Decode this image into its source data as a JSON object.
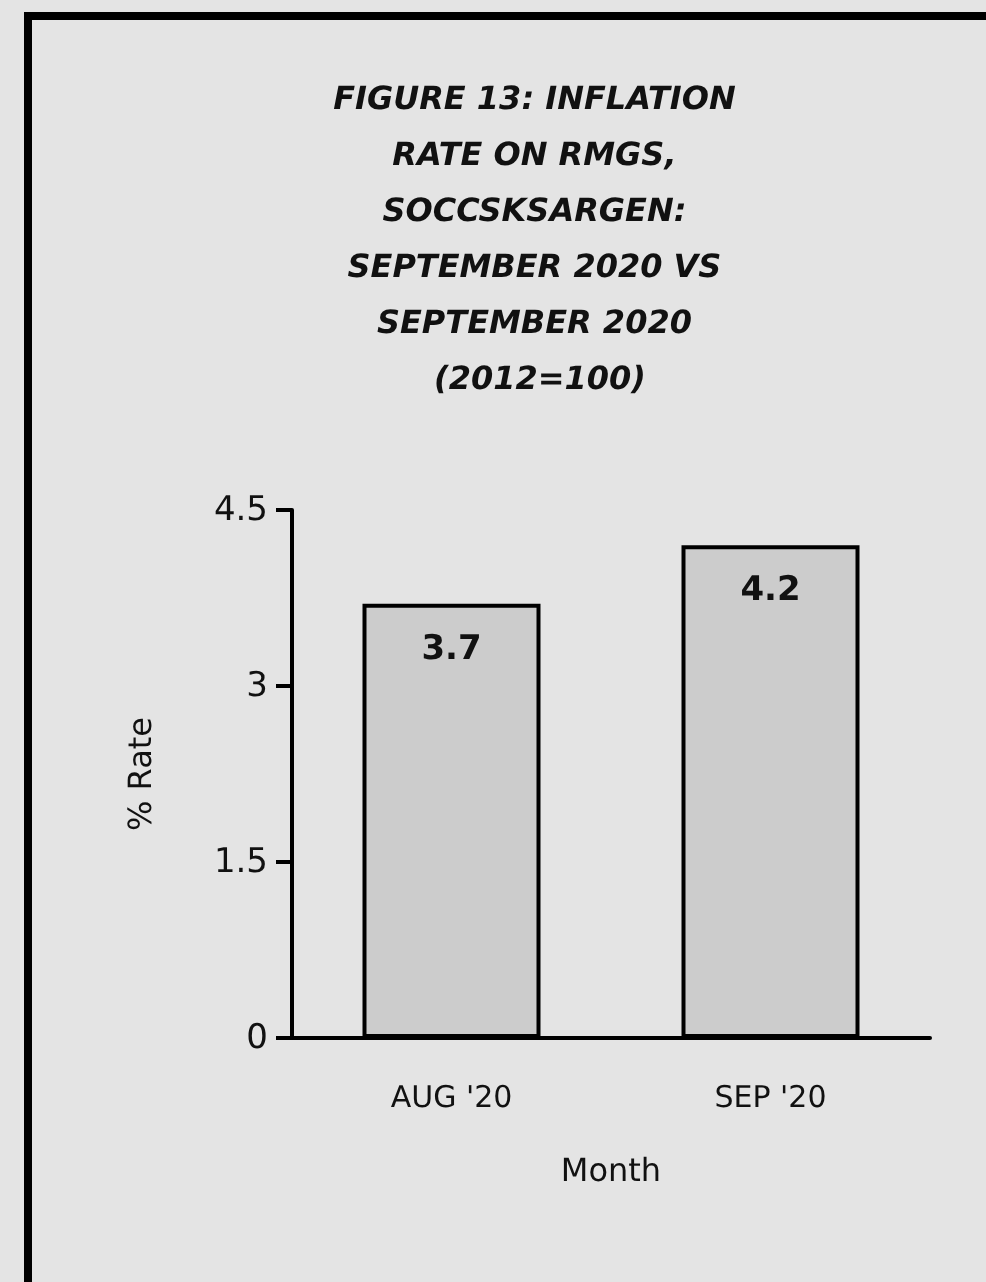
{
  "chart_data": {
    "type": "bar",
    "title": "FIGURE 13: INFLATION RATE ON RMGS, SOCCSKSARGEN: SEPTEMBER 2020 VS SEPTEMBER 2020 (2012=100)",
    "xlabel": "Month",
    "ylabel": "% Rate",
    "categories": [
      "AUG '20",
      "SEP '20"
    ],
    "values": [
      3.7,
      4.2
    ],
    "color": "#cccccc",
    "ylim": [
      0,
      4.5
    ],
    "yticks": [
      0,
      1.5,
      3,
      4.5
    ],
    "grid": false,
    "data_labels": true
  }
}
